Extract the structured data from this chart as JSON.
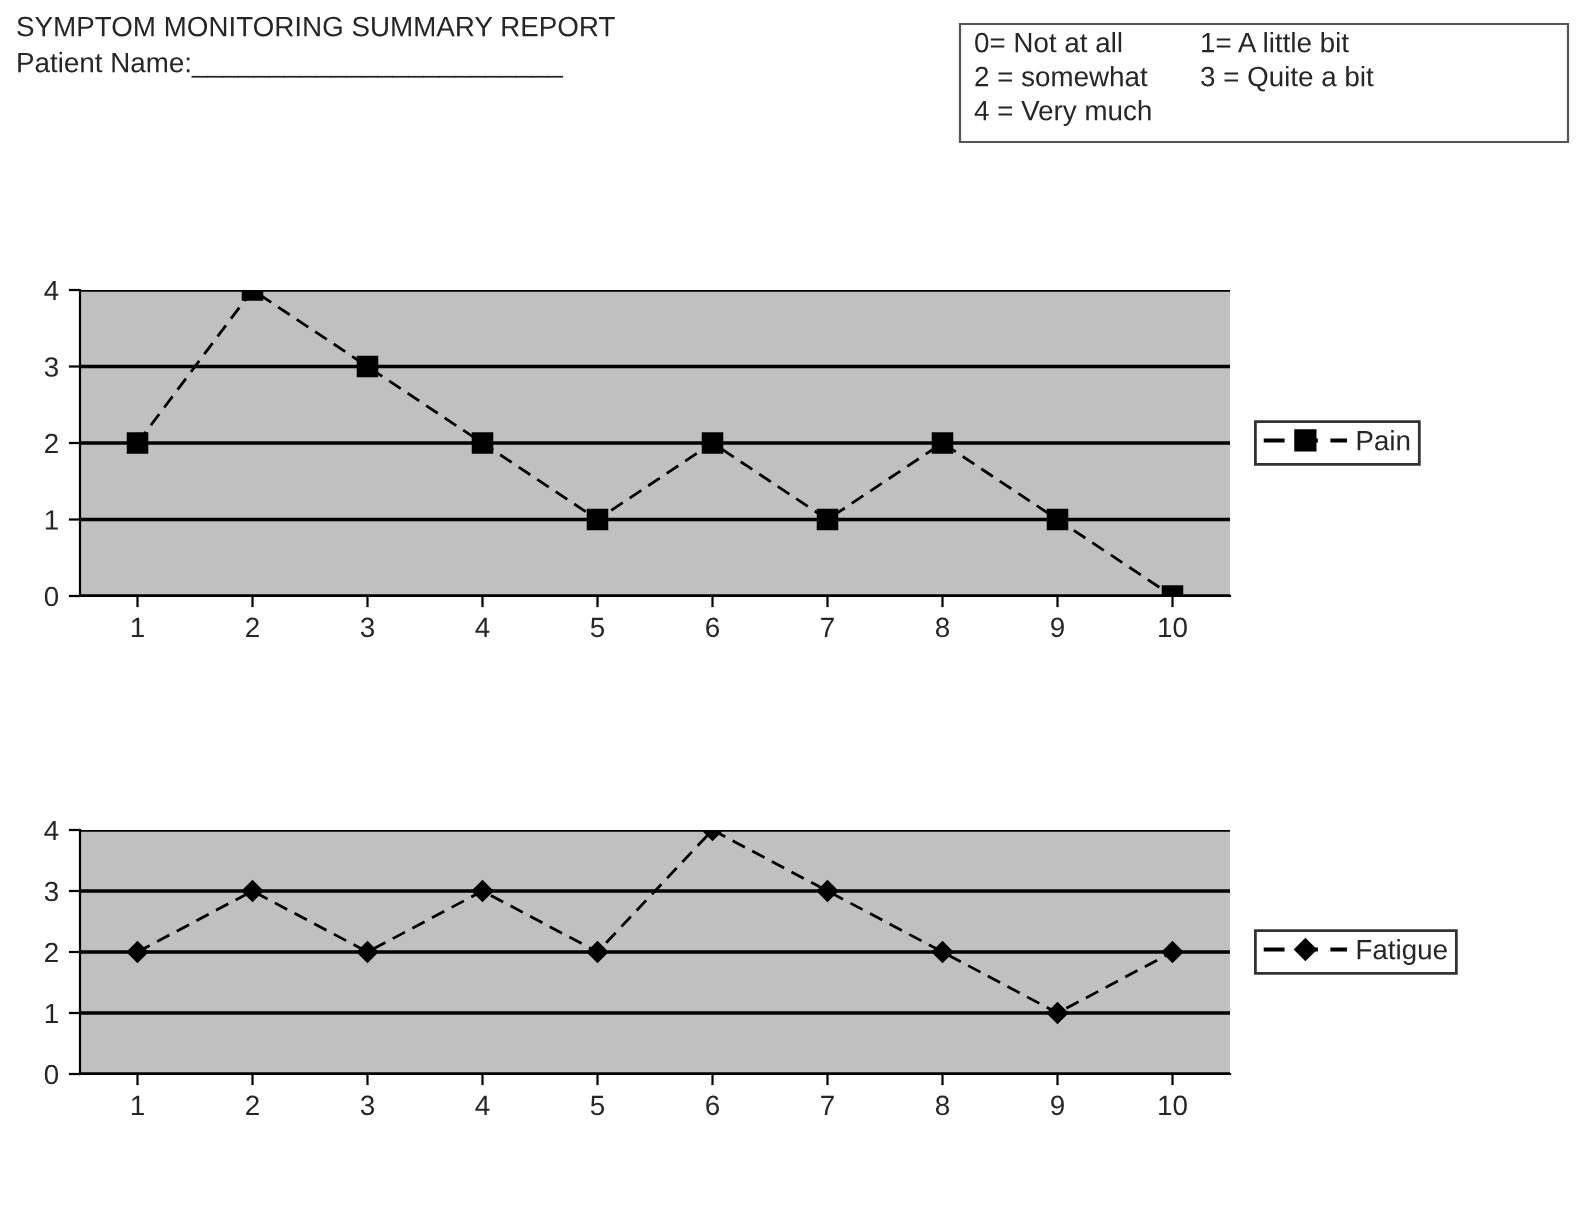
{
  "chart_data": [
    {
      "type": "line",
      "title": "SYMPTOM MONITORING SUMMARY REPORT",
      "annotations": [
        "Patient Name:________________________",
        "0= Not at all",
        "1= A little bit",
        "2 = somewhat",
        "3 = Quite a bit",
        "4 = Very much"
      ],
      "categories": [
        "1",
        "2",
        "3",
        "4",
        "5",
        "6",
        "7",
        "8",
        "9",
        "10"
      ],
      "series": [
        {
          "name": "Pain",
          "color": "#000000",
          "values": [
            2,
            4,
            3,
            2,
            1,
            2,
            1,
            2,
            1,
            0
          ]
        }
      ],
      "ylim": [
        0,
        4
      ],
      "yticks": [
        0,
        1,
        2,
        3,
        4
      ],
      "grid": "y",
      "legend": "right",
      "marker": "square",
      "line_style": "dashed"
    },
    {
      "type": "line",
      "categories": [
        "1",
        "2",
        "3",
        "4",
        "5",
        "6",
        "7",
        "8",
        "9",
        "10"
      ],
      "series": [
        {
          "name": "Fatigue",
          "color": "#000000",
          "values": [
            2,
            3,
            2,
            3,
            2,
            4,
            3,
            2,
            1,
            2
          ]
        }
      ],
      "ylim": [
        0,
        4
      ],
      "yticks": [
        0,
        1,
        2,
        3,
        4
      ],
      "grid": "y",
      "legend": "right",
      "marker": "diamond",
      "line_style": "dashed"
    }
  ]
}
